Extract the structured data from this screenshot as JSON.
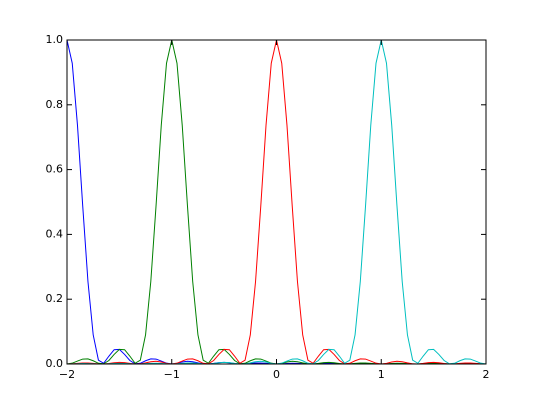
{
  "chart_data": {
    "type": "line",
    "x": [
      -2,
      -1.95,
      -1.9,
      -1.85,
      -1.8,
      -1.75,
      -1.7,
      -1.65,
      -1.6,
      -1.55,
      -1.5,
      -1.45,
      -1.4,
      -1.35,
      -1.3,
      -1.25,
      -1.2,
      -1.15,
      -1.1,
      -1.05,
      -1,
      -0.95,
      -0.9,
      -0.85,
      -0.8,
      -0.75,
      -0.7,
      -0.65,
      -0.6,
      -0.55,
      -0.5,
      -0.45,
      -0.4,
      -0.35,
      -0.3,
      -0.25,
      -0.2,
      -0.15,
      -0.1,
      -0.05,
      0,
      0.05,
      0.1,
      0.15,
      0.2,
      0.25,
      0.3,
      0.35,
      0.4,
      0.45,
      0.5,
      0.55,
      0.6,
      0.65,
      0.7,
      0.75,
      0.8,
      0.85,
      0.9,
      0.95,
      1,
      1.05,
      1.1,
      1.15,
      1.2,
      1.25,
      1.3,
      1.35,
      1.4,
      1.45,
      1.5,
      1.55,
      1.6,
      1.65,
      1.7,
      1.75,
      1.8,
      1.85,
      1.9,
      1.95,
      2
    ],
    "series": [
      {
        "color": "#0000ff",
        "values": [
          1,
          0.9282,
          0.7368,
          0.4882,
          0.2546,
          0.0901,
          0.0119,
          0.0023,
          0.0243,
          0.0441,
          0.045,
          0.0295,
          0.0108,
          0.0007,
          0.0022,
          0.01,
          0.0159,
          0.0152,
          0.0091,
          0.0026,
          0,
          0.0021,
          0.0061,
          0.0083,
          0.0071,
          0.0036,
          0.0006,
          0.0002,
          0.002,
          0.0043,
          0.005,
          0.0037,
          0.0015,
          0.0001,
          0.0004,
          0.0018,
          0.0031,
          0.0032,
          0.002,
          0.0006,
          0,
          0.0006,
          0.0017,
          0.0024,
          0.0021,
          0.0011,
          0.0002,
          0,
          0.0007,
          0.0015,
          0.0018,
          0.0014,
          0.0006,
          0,
          0.0001,
          0.0007,
          0.0013,
          0.0014,
          0.0009,
          0.0003,
          0,
          0.0002,
          0.0008,
          0.0011,
          0.001,
          0.0005,
          0.0001,
          0,
          0.0003,
          0.0008,
          0.0009,
          0.0007,
          0.0003,
          0,
          0.0001,
          0.0004,
          0.0007,
          0.0007,
          0.0005,
          0.0001,
          0
        ]
      },
      {
        "color": "#008000",
        "values": [
          0,
          0.0026,
          0.0091,
          0.0152,
          0.0159,
          0.01,
          0.0022,
          0.0007,
          0.0108,
          0.0295,
          0.045,
          0.0441,
          0.0243,
          0.0023,
          0.0119,
          0.0901,
          0.2546,
          0.4882,
          0.7368,
          0.9282,
          1,
          0.9282,
          0.7368,
          0.4882,
          0.2546,
          0.0901,
          0.0119,
          0.0023,
          0.0243,
          0.0441,
          0.045,
          0.0295,
          0.0108,
          0.0007,
          0.0022,
          0.01,
          0.0159,
          0.0152,
          0.0091,
          0.0026,
          0,
          0.0021,
          0.0061,
          0.0083,
          0.0071,
          0.0036,
          0.0006,
          0.0002,
          0.002,
          0.0043,
          0.005,
          0.0037,
          0.0015,
          0.0001,
          0.0004,
          0.0018,
          0.0031,
          0.0032,
          0.002,
          0.0006,
          0,
          0.0006,
          0.0017,
          0.0024,
          0.0021,
          0.0011,
          0.0002,
          0,
          0.0007,
          0.0015,
          0.0018,
          0.0014,
          0.0006,
          0,
          0.0001,
          0.0007,
          0.0013,
          0.0014,
          0.0009,
          0.0003,
          0
        ]
      },
      {
        "color": "#ff0000",
        "values": [
          0,
          0.0006,
          0.002,
          0.0032,
          0.0031,
          0.0018,
          0.0004,
          0.0001,
          0.0015,
          0.0037,
          0.005,
          0.0043,
          0.002,
          0.0002,
          0.0006,
          0.0036,
          0.0071,
          0.0083,
          0.0061,
          0.0021,
          0,
          0.0026,
          0.0091,
          0.0152,
          0.0159,
          0.01,
          0.0022,
          0.0007,
          0.0108,
          0.0295,
          0.045,
          0.0441,
          0.0243,
          0.0023,
          0.0119,
          0.0901,
          0.2546,
          0.4882,
          0.7368,
          0.9282,
          1,
          0.9282,
          0.7368,
          0.4882,
          0.2546,
          0.0901,
          0.0119,
          0.0023,
          0.0243,
          0.0441,
          0.045,
          0.0295,
          0.0108,
          0.0007,
          0.0022,
          0.01,
          0.0159,
          0.0152,
          0.0091,
          0.0026,
          0,
          0.0021,
          0.0061,
          0.0083,
          0.0071,
          0.0036,
          0.0006,
          0.0002,
          0.002,
          0.0043,
          0.005,
          0.0037,
          0.0015,
          0.0001,
          0.0004,
          0.0018,
          0.0031,
          0.0032,
          0.002,
          0.0006,
          0
        ]
      },
      {
        "color": "#00bfbf",
        "values": [
          0,
          0.0003,
          0.0009,
          0.0014,
          0.0013,
          0.0007,
          0.0001,
          0,
          0.0006,
          0.0014,
          0.0018,
          0.0015,
          0.0007,
          0,
          0.0002,
          0.0011,
          0.0021,
          0.0024,
          0.0017,
          0.0006,
          0,
          0.0006,
          0.002,
          0.0032,
          0.0031,
          0.0018,
          0.0004,
          0.0001,
          0.0015,
          0.0037,
          0.005,
          0.0043,
          0.002,
          0.0002,
          0.0006,
          0.0036,
          0.0071,
          0.0083,
          0.0061,
          0.0021,
          0,
          0.0026,
          0.0091,
          0.0152,
          0.0159,
          0.01,
          0.0022,
          0.0007,
          0.0108,
          0.0295,
          0.045,
          0.0441,
          0.0243,
          0.0023,
          0.0119,
          0.0901,
          0.2546,
          0.4882,
          0.7368,
          0.9282,
          1,
          0.9282,
          0.7368,
          0.4882,
          0.2546,
          0.0901,
          0.0119,
          0.0023,
          0.0243,
          0.0441,
          0.045,
          0.0295,
          0.0108,
          0.0007,
          0.0022,
          0.01,
          0.0159,
          0.0152,
          0.0091,
          0.0026,
          0
        ]
      }
    ],
    "xlim": [
      -2,
      2
    ],
    "ylim": [
      0,
      1
    ],
    "xticks": [
      {
        "value": -2,
        "label": "−2"
      },
      {
        "value": -1,
        "label": "−1"
      },
      0,
      1,
      2
    ],
    "yticks": [
      {
        "value": 0,
        "label": "0.0"
      },
      0.2,
      0.4,
      0.6,
      0.8,
      {
        "value": 1,
        "label": "1.0"
      }
    ],
    "grid": false
  }
}
